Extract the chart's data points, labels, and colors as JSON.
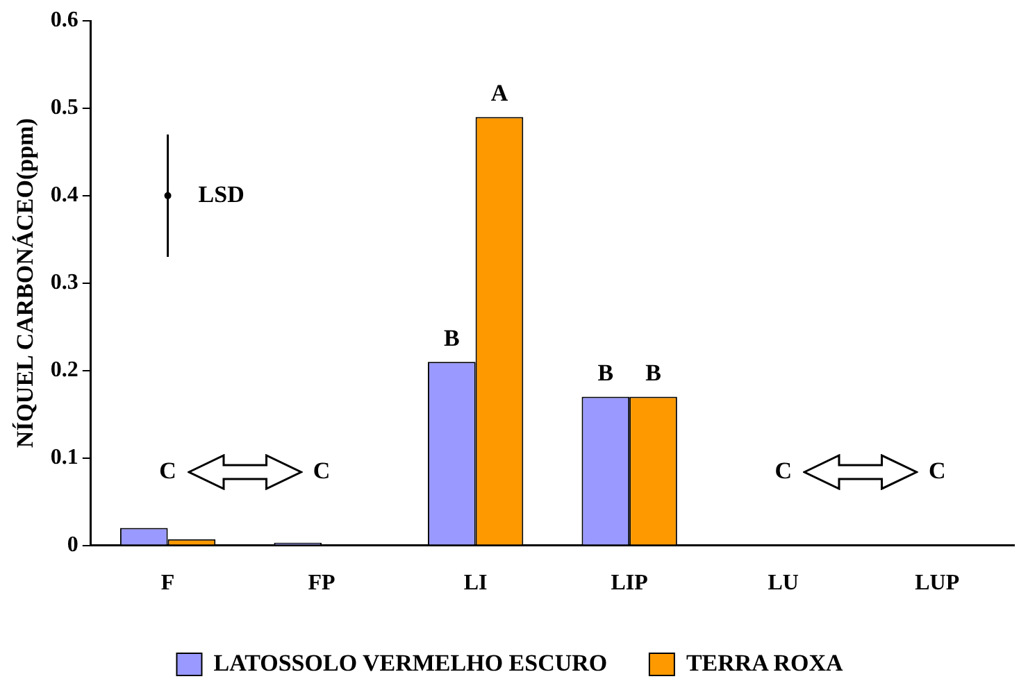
{
  "chart_data": {
    "type": "bar",
    "ylabel": "NÍQUEL CARBONÁCEO(ppm)",
    "categories": [
      "F",
      "FP",
      "LI",
      "LIP",
      "LU",
      "LUP"
    ],
    "series": [
      {
        "name": "LATOSSOLO VERMELHO ESCURO",
        "color": "#9999ff",
        "values": [
          0.02,
          0.003,
          0.21,
          0.17,
          0,
          0
        ]
      },
      {
        "name": "TERRA ROXA",
        "color": "#ff9900",
        "values": [
          0.007,
          0,
          0.49,
          0.17,
          0,
          0
        ]
      },
      {
        "name": "LSD",
        "type": "scatter",
        "color": "#000000",
        "x": [
          "F"
        ],
        "values": [
          0.4
        ],
        "errors": [
          0.07
        ]
      }
    ],
    "ylim": [
      0,
      0.6
    ],
    "yticks": [
      0,
      0.1,
      0.2,
      0.3,
      0.4,
      0.5,
      0.6
    ],
    "grid": false,
    "legend": "bottom",
    "annotations": [
      "C",
      "C",
      {
        "text": "B",
        "x": "LI",
        "y": 0.21
      },
      {
        "text": "A",
        "x": "LI",
        "y": 0.49
      },
      {
        "text": "B",
        "x": "LIP",
        "y": 0.17
      },
      {
        "text": "B",
        "x": "LIP",
        "y": 0.17
      },
      "C",
      "C"
    ]
  }
}
